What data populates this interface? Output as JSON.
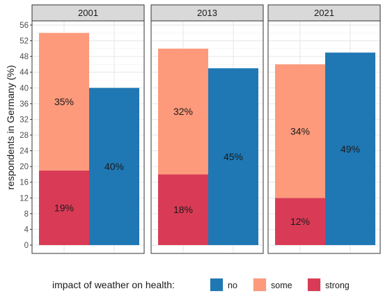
{
  "chart_data": {
    "type": "bar",
    "stacking": "stacked-left-bar-and-separate-right-bar",
    "facets": [
      {
        "title": "2001",
        "bars": [
          {
            "stack": [
              {
                "category": "strong",
                "value": 19,
                "label": "19%"
              },
              {
                "category": "some",
                "value": 35,
                "label": "35%"
              }
            ]
          },
          {
            "stack": [
              {
                "category": "no",
                "value": 40,
                "label": "40%"
              }
            ]
          }
        ]
      },
      {
        "title": "2013",
        "bars": [
          {
            "stack": [
              {
                "category": "strong",
                "value": 18,
                "label": "18%"
              },
              {
                "category": "some",
                "value": 32,
                "label": "32%"
              }
            ]
          },
          {
            "stack": [
              {
                "category": "no",
                "value": 45,
                "label": "45%"
              }
            ]
          }
        ]
      },
      {
        "title": "2021",
        "bars": [
          {
            "stack": [
              {
                "category": "strong",
                "value": 12,
                "label": "12%"
              },
              {
                "category": "some",
                "value": 34,
                "label": "34%"
              }
            ]
          },
          {
            "stack": [
              {
                "category": "no",
                "value": 49,
                "label": "49%"
              }
            ]
          }
        ]
      }
    ],
    "ylabel": "respondents in Germany (%)",
    "ylim": [
      0,
      56
    ],
    "yticks": [
      0,
      4,
      8,
      12,
      16,
      20,
      24,
      28,
      32,
      36,
      40,
      44,
      48,
      52,
      56
    ],
    "grid": true,
    "legend": {
      "title": "impact of weather on health:",
      "position": "bottom",
      "entries": [
        {
          "category": "no",
          "label": "no",
          "color": "#1f78b4"
        },
        {
          "category": "some",
          "label": "some",
          "color": "#fc9a7b"
        },
        {
          "category": "strong",
          "label": "strong",
          "color": "#d93b56"
        }
      ]
    }
  }
}
